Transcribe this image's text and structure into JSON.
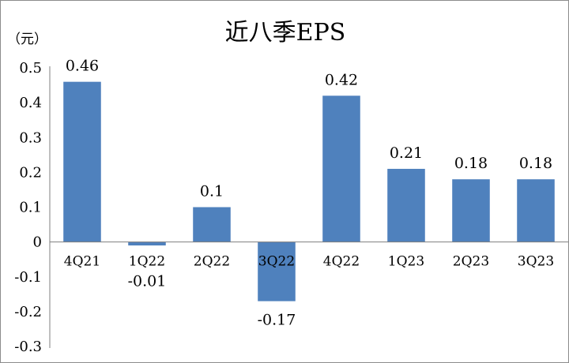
{
  "chart_data": {
    "type": "bar",
    "title": "近八季EPS",
    "unit_label": "（元）",
    "categories": [
      "4Q21",
      "1Q22",
      "2Q22",
      "3Q22",
      "4Q22",
      "1Q23",
      "2Q23",
      "3Q23"
    ],
    "values": [
      0.46,
      -0.01,
      0.1,
      -0.17,
      0.42,
      0.21,
      0.18,
      0.18
    ],
    "data_labels": [
      "0.46",
      "-0.01",
      "0.1",
      "-0.17",
      "0.42",
      "0.21",
      "0.18",
      "0.18"
    ],
    "y_ticks": [
      "0.5",
      "0.4",
      "0.3",
      "0.2",
      "0.1",
      "0",
      "-0.1",
      "-0.2",
      "-0.3"
    ],
    "ylim": [
      -0.3,
      0.5
    ],
    "bar_color": "#4f81bd",
    "grid": false,
    "legend": "none"
  }
}
